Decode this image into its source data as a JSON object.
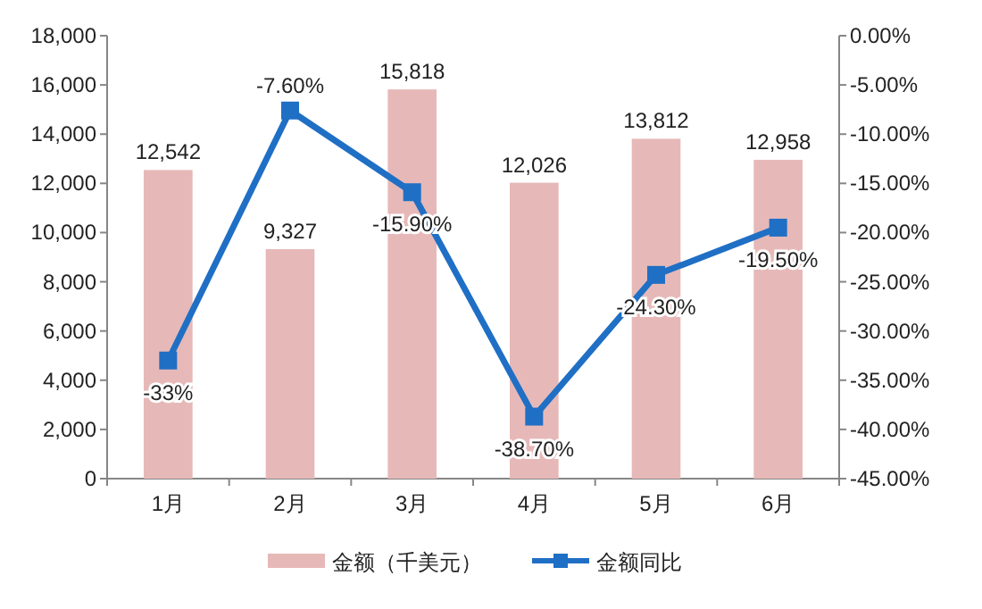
{
  "chart_data": {
    "type": "bar",
    "categories": [
      "1月",
      "2月",
      "3月",
      "4月",
      "5月",
      "6月"
    ],
    "series": [
      {
        "name": "金额（千美元）",
        "color": "#e6b9b8",
        "values": [
          12542,
          9327,
          15818,
          12026,
          13812,
          12958
        ],
        "value_labels": [
          "12,542",
          "9,327",
          "15,818",
          "12,026",
          "13,812",
          "12,958"
        ]
      },
      {
        "name": "金额同比",
        "type": "line",
        "axis": "y2",
        "color": "#1f6fc5",
        "marker": "square",
        "values": [
          -33,
          -7.6,
          -15.9,
          -38.7,
          -24.3,
          -19.5
        ],
        "value_labels": [
          "-33%",
          "-7.60%",
          "-15.90%",
          "-38.70%",
          "-24.30%",
          "-19.50%"
        ]
      }
    ],
    "ylim": [
      0,
      18000
    ],
    "yticks": [
      0,
      {
        "value": 2000,
        "label": "2,000"
      },
      {
        "value": 4000,
        "label": "4,000"
      },
      {
        "value": 6000,
        "label": "6,000"
      },
      {
        "value": 8000,
        "label": "8,000"
      },
      {
        "value": 10000,
        "label": "10,000"
      },
      {
        "value": 12000,
        "label": "12,000"
      },
      {
        "value": 14000,
        "label": "14,000"
      },
      {
        "value": 16000,
        "label": "16,000"
      },
      {
        "value": 18000,
        "label": "18,000"
      }
    ],
    "y2lim": [
      -45,
      0
    ],
    "y2ticks": [
      {
        "value": 0,
        "label": "0.00%"
      },
      {
        "value": -5,
        "label": "-5.00%"
      },
      {
        "value": -10,
        "label": "-10.00%"
      },
      {
        "value": -15,
        "label": "-15.00%"
      },
      {
        "value": -20,
        "label": "-20.00%"
      },
      {
        "value": -25,
        "label": "-25.00%"
      },
      {
        "value": -30,
        "label": "-30.00%"
      },
      {
        "value": -35,
        "label": "-35.00%"
      },
      {
        "value": -40,
        "label": "-40.00%"
      },
      {
        "value": -45,
        "label": "-45.00%"
      }
    ],
    "legend": "bottom",
    "grid": false
  }
}
